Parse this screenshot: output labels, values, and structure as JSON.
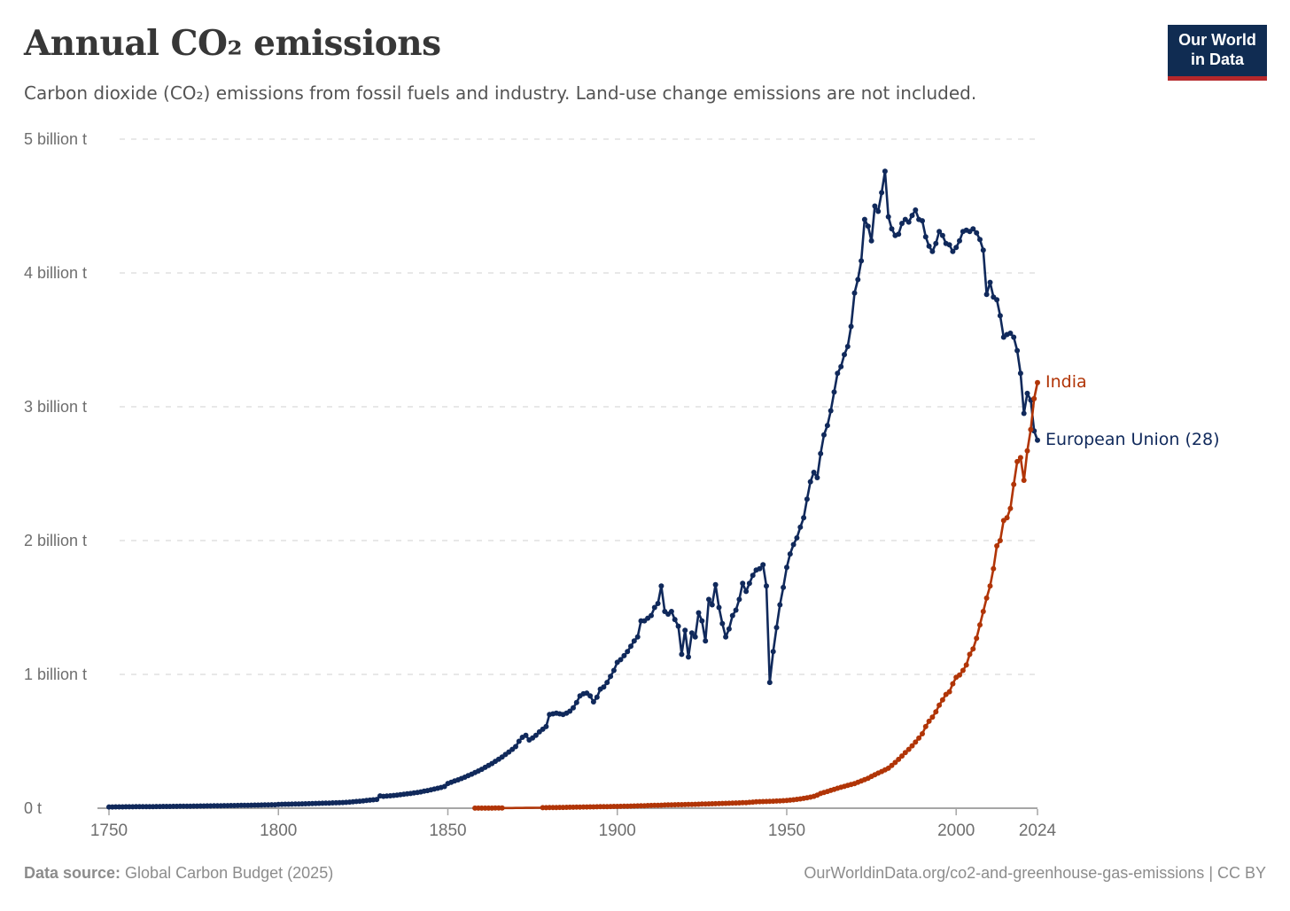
{
  "header": {
    "title": "Annual CO₂ emissions",
    "subtitle": "Carbon dioxide (CO₂) emissions from fossil fuels and industry. Land-use change emissions are not included."
  },
  "logo": {
    "line1": "Our World",
    "line2": "in Data",
    "bg": "#102c52",
    "bar": "#b6282b"
  },
  "footer": {
    "source_label": "Data source:",
    "source_value": " Global Carbon Budget (2025)",
    "right": "OurWorldinData.org/co2-and-greenhouse-gas-emissions | CC BY"
  },
  "chart_data": {
    "type": "line",
    "title": "Annual CO₂ emissions",
    "xlabel": "",
    "ylabel": "",
    "xlim": [
      1750,
      2024
    ],
    "ylim": [
      0,
      5
    ],
    "grid": "horizontal-dashed",
    "legend_position": "end-of-line-labels",
    "x_ticks": [
      1750,
      1800,
      1850,
      1900,
      1950,
      2000,
      2024
    ],
    "y_ticks": [
      0,
      1,
      2,
      3,
      4,
      5
    ],
    "y_tick_labels": [
      "0 t",
      "1 billion t",
      "2 billion t",
      "3 billion t",
      "4 billion t",
      "5 billion t"
    ],
    "unit": "billion tonnes CO2 per year",
    "colors": {
      "axis": "#a6a6a6",
      "grid": "#d9d9d9",
      "tick_label": "#6e6e6e"
    },
    "series": [
      {
        "name": "European Union (28)",
        "color": "#10295b",
        "start_year": 1750,
        "values": [
          0.0093,
          0.0095,
          0.0097,
          0.0099,
          0.0101,
          0.0103,
          0.0105,
          0.0107,
          0.011,
          0.0112,
          0.0114,
          0.0117,
          0.0119,
          0.0122,
          0.0124,
          0.0127,
          0.013,
          0.0132,
          0.0135,
          0.0138,
          0.0141,
          0.0144,
          0.0147,
          0.015,
          0.0153,
          0.0156,
          0.016,
          0.0163,
          0.0166,
          0.017,
          0.0174,
          0.0177,
          0.0181,
          0.0185,
          0.0189,
          0.0193,
          0.0197,
          0.0201,
          0.0206,
          0.021,
          0.0215,
          0.0219,
          0.0224,
          0.0229,
          0.0234,
          0.0239,
          0.0244,
          0.0249,
          0.0255,
          0.026,
          0.0283,
          0.0289,
          0.0295,
          0.0301,
          0.0307,
          0.0314,
          0.032,
          0.0327,
          0.0334,
          0.0341,
          0.0348,
          0.0356,
          0.0363,
          0.0371,
          0.0379,
          0.0387,
          0.0395,
          0.0404,
          0.0412,
          0.0421,
          0.044,
          0.046,
          0.0481,
          0.0503,
          0.0526,
          0.055,
          0.0575,
          0.0601,
          0.0628,
          0.0657,
          0.092,
          0.089,
          0.0905,
          0.093,
          0.0956,
          0.0983,
          0.101,
          0.104,
          0.107,
          0.11,
          0.114,
          0.118,
          0.122,
          0.127,
          0.132,
          0.137,
          0.143,
          0.149,
          0.155,
          0.162,
          0.185,
          0.194,
          0.203,
          0.212,
          0.222,
          0.232,
          0.243,
          0.254,
          0.266,
          0.278,
          0.291,
          0.305,
          0.319,
          0.334,
          0.35,
          0.366,
          0.383,
          0.401,
          0.42,
          0.44,
          0.46,
          0.5,
          0.53,
          0.545,
          0.51,
          0.525,
          0.545,
          0.57,
          0.59,
          0.61,
          0.7,
          0.705,
          0.71,
          0.705,
          0.7,
          0.71,
          0.725,
          0.75,
          0.79,
          0.84,
          0.855,
          0.86,
          0.84,
          0.795,
          0.83,
          0.89,
          0.905,
          0.94,
          0.985,
          1.03,
          1.09,
          1.11,
          1.14,
          1.17,
          1.21,
          1.25,
          1.28,
          1.4,
          1.4,
          1.42,
          1.44,
          1.5,
          1.53,
          1.66,
          1.47,
          1.45,
          1.47,
          1.41,
          1.36,
          1.15,
          1.33,
          1.13,
          1.31,
          1.28,
          1.46,
          1.4,
          1.25,
          1.56,
          1.52,
          1.67,
          1.5,
          1.38,
          1.28,
          1.34,
          1.44,
          1.48,
          1.56,
          1.68,
          1.62,
          1.68,
          1.74,
          1.78,
          1.79,
          1.82,
          1.66,
          0.94,
          1.17,
          1.35,
          1.52,
          1.65,
          1.8,
          1.9,
          1.97,
          2.02,
          2.1,
          2.17,
          2.31,
          2.44,
          2.51,
          2.47,
          2.65,
          2.79,
          2.86,
          2.97,
          3.11,
          3.25,
          3.3,
          3.39,
          3.45,
          3.6,
          3.85,
          3.95,
          4.09,
          4.4,
          4.35,
          4.24,
          4.5,
          4.46,
          4.6,
          4.76,
          4.42,
          4.33,
          4.28,
          4.29,
          4.37,
          4.4,
          4.38,
          4.43,
          4.47,
          4.4,
          4.39,
          4.27,
          4.2,
          4.16,
          4.22,
          4.31,
          4.28,
          4.22,
          4.21,
          4.16,
          4.19,
          4.24,
          4.31,
          4.32,
          4.31,
          4.33,
          4.3,
          4.25,
          4.17,
          3.84,
          3.93,
          3.82,
          3.8,
          3.68,
          3.52,
          3.54,
          3.55,
          3.52,
          3.42,
          3.25,
          2.95,
          3.1,
          3.05,
          2.82,
          2.75
        ]
      },
      {
        "name": "India",
        "color": "#b13507",
        "start_year": 1858,
        "marker_gap": [
          1867,
          1877
        ],
        "values": [
          0.0004,
          0.0005,
          0.0006,
          0.0007,
          0.0008,
          0.0009,
          0.001,
          0.0011,
          0.0012,
          0.0013,
          0.0015,
          0.0016,
          0.0018,
          0.002,
          0.0022,
          0.0024,
          0.0026,
          0.0029,
          0.0032,
          0.0035,
          0.0038,
          0.0042,
          0.0046,
          0.005,
          0.0054,
          0.0058,
          0.0062,
          0.0066,
          0.007,
          0.0075,
          0.008,
          0.0085,
          0.009,
          0.0094,
          0.0098,
          0.0102,
          0.0106,
          0.011,
          0.0116,
          0.0121,
          0.0126,
          0.013,
          0.0134,
          0.014,
          0.0146,
          0.0152,
          0.0158,
          0.0165,
          0.0172,
          0.018,
          0.0188,
          0.0196,
          0.0205,
          0.0212,
          0.022,
          0.0228,
          0.0236,
          0.0244,
          0.025,
          0.0256,
          0.0262,
          0.0268,
          0.0274,
          0.028,
          0.0287,
          0.0294,
          0.0301,
          0.0308,
          0.0316,
          0.0324,
          0.0332,
          0.034,
          0.0348,
          0.0356,
          0.0364,
          0.0372,
          0.0381,
          0.039,
          0.04,
          0.041,
          0.042,
          0.044,
          0.046,
          0.048,
          0.049,
          0.05,
          0.0505,
          0.051,
          0.052,
          0.0535,
          0.055,
          0.0565,
          0.058,
          0.0605,
          0.063,
          0.066,
          0.0695,
          0.0735,
          0.078,
          0.083,
          0.089,
          0.098,
          0.11,
          0.117,
          0.125,
          0.133,
          0.141,
          0.149,
          0.156,
          0.163,
          0.17,
          0.177,
          0.184,
          0.194,
          0.204,
          0.214,
          0.224,
          0.238,
          0.25,
          0.262,
          0.274,
          0.286,
          0.299,
          0.32,
          0.342,
          0.365,
          0.39,
          0.416,
          0.44,
          0.466,
          0.494,
          0.524,
          0.556,
          0.61,
          0.65,
          0.68,
          0.72,
          0.77,
          0.81,
          0.85,
          0.87,
          0.93,
          0.978,
          0.995,
          1.03,
          1.07,
          1.15,
          1.19,
          1.27,
          1.37,
          1.47,
          1.57,
          1.66,
          1.79,
          1.96,
          2.0,
          2.15,
          2.17,
          2.24,
          2.42,
          2.59,
          2.62,
          2.45,
          2.67,
          2.83,
          3.06,
          3.18
        ]
      }
    ]
  }
}
